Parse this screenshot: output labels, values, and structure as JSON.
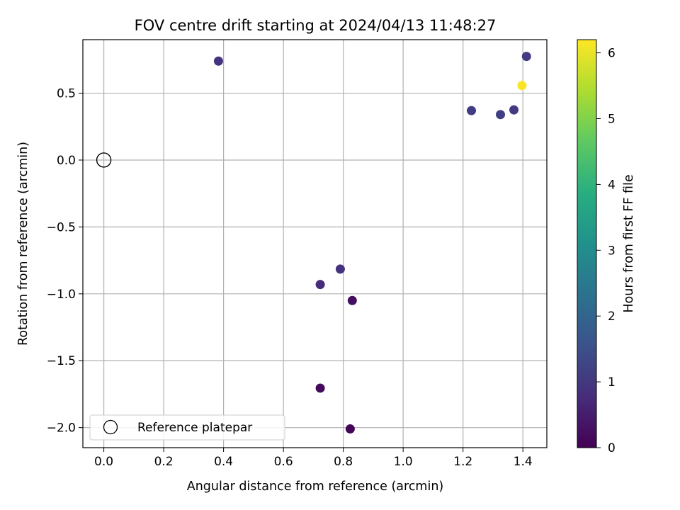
{
  "chart_data": {
    "type": "scatter",
    "title": "FOV centre drift starting at 2024/04/13 11:48:27",
    "xlabel": "Angular distance from reference (arcmin)",
    "ylabel": "Rotation from reference (arcmin)",
    "xlim": [
      -0.07,
      1.48
    ],
    "ylim": [
      -2.15,
      0.9
    ],
    "xticks": [
      0.0,
      0.2,
      0.4,
      0.6,
      0.8,
      1.0,
      1.2,
      1.4
    ],
    "xtick_labels": [
      "0.0",
      "0.2",
      "0.4",
      "0.6",
      "0.8",
      "1.0",
      "1.2",
      "1.4"
    ],
    "yticks": [
      0.5,
      0.0,
      -0.5,
      -1.0,
      -1.5,
      -2.0
    ],
    "ytick_labels": [
      "0.5",
      "0.0",
      "−0.5",
      "−1.0",
      "−1.5",
      "−2.0"
    ],
    "grid": true,
    "colorbar": {
      "label": "Hours from first FF file",
      "colormap": "viridis",
      "range": [
        0,
        6.2
      ],
      "ticks": [
        0,
        1,
        2,
        3,
        4,
        5,
        6
      ],
      "tick_labels": [
        "0",
        "1",
        "2",
        "3",
        "4",
        "5",
        "6"
      ]
    },
    "reference": {
      "x": 0.0,
      "y": 0.0
    },
    "legend": {
      "position": "lower-left",
      "entries": [
        "Reference platepar"
      ]
    },
    "points": [
      {
        "x": 0.823,
        "y": -2.01,
        "hours": 0.05
      },
      {
        "x": 0.723,
        "y": -1.705,
        "hours": 0.15
      },
      {
        "x": 0.83,
        "y": -1.05,
        "hours": 0.25
      },
      {
        "x": 0.723,
        "y": -0.93,
        "hours": 0.75
      },
      {
        "x": 0.79,
        "y": -0.815,
        "hours": 0.85
      },
      {
        "x": 0.383,
        "y": 0.74,
        "hours": 0.9
      },
      {
        "x": 1.228,
        "y": 0.37,
        "hours": 1.1
      },
      {
        "x": 1.325,
        "y": 0.34,
        "hours": 1.15
      },
      {
        "x": 1.37,
        "y": 0.375,
        "hours": 1.05
      },
      {
        "x": 1.412,
        "y": 0.775,
        "hours": 1.1
      },
      {
        "x": 1.397,
        "y": 0.557,
        "hours": 6.15
      }
    ]
  }
}
